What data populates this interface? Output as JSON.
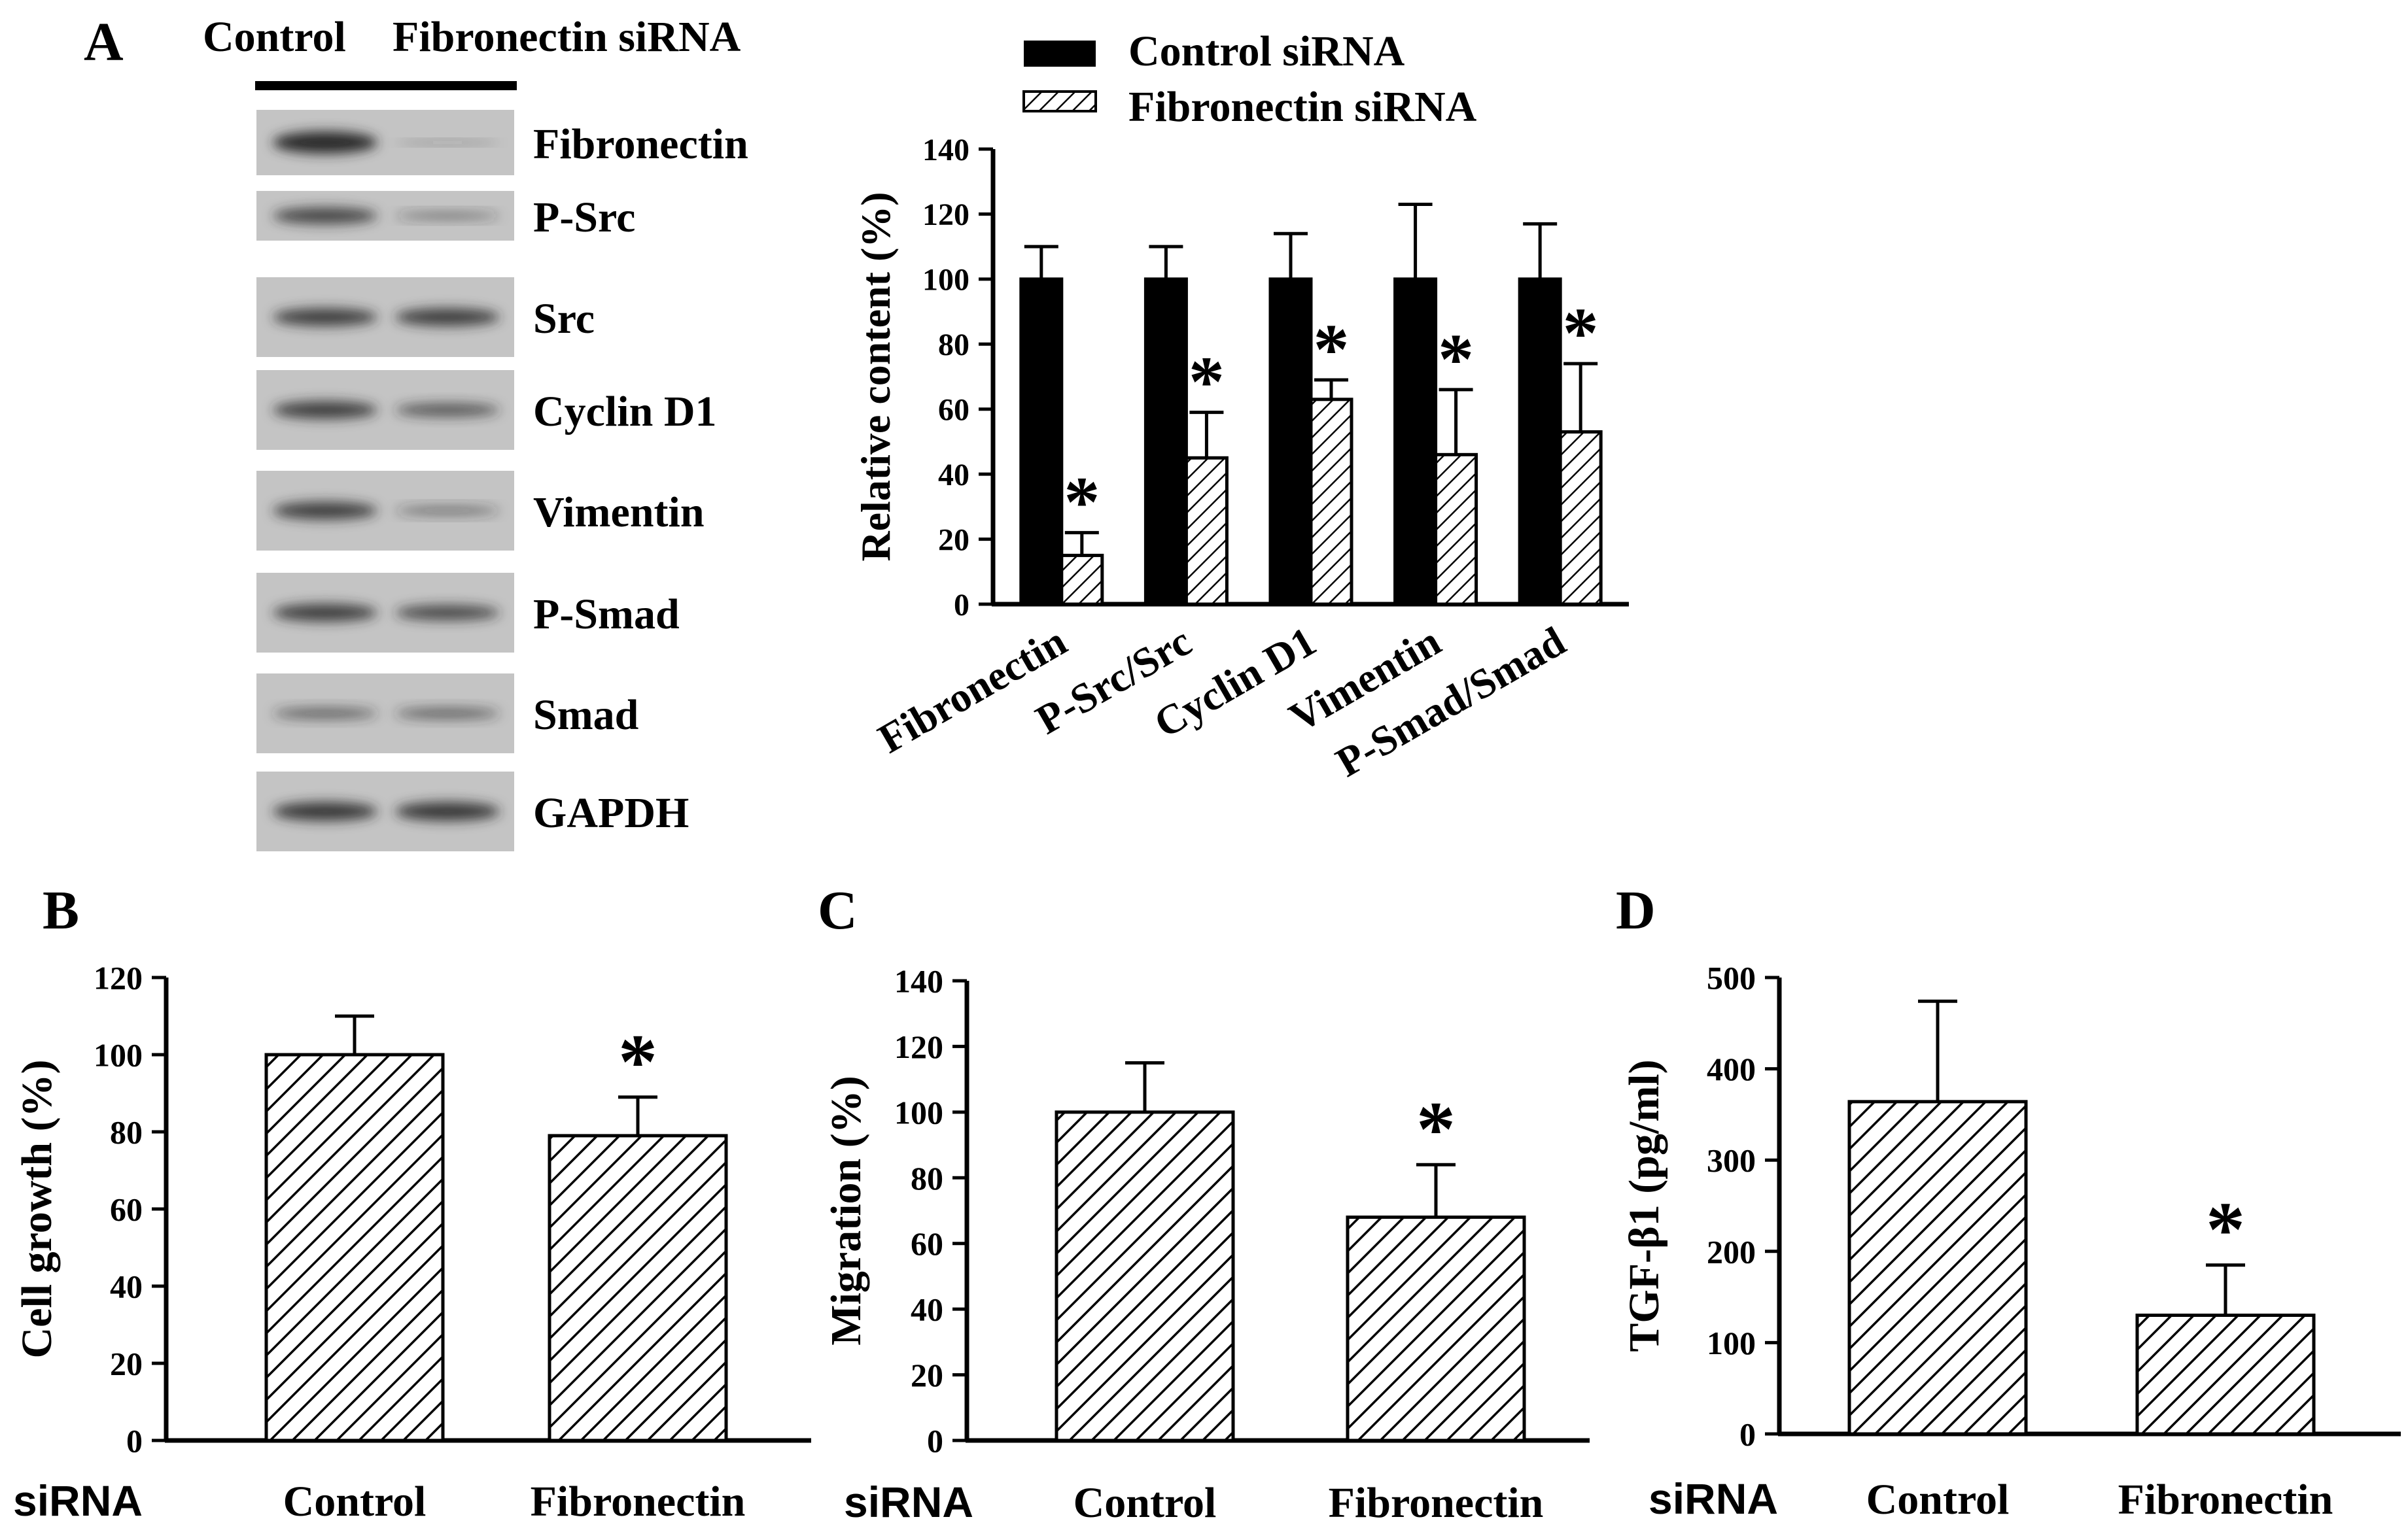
{
  "colors": {
    "ink": "#000000",
    "paper": "#ffffff",
    "blot_bg": "#c4c4c4",
    "band": "#2a2a2a"
  },
  "panel_labels": {
    "a": "A",
    "b": "B",
    "c": "C",
    "d": "D"
  },
  "blot": {
    "lane_headers": [
      "Control",
      "Fibronectin siRNA"
    ],
    "rows": [
      {
        "label": "Fibronectin",
        "control_intensity": 1.0,
        "sirna_intensity": 0.15
      },
      {
        "label": "P-Src",
        "control_intensity": 0.75,
        "sirna_intensity": 0.35
      },
      {
        "label": "Src",
        "control_intensity": 0.8,
        "sirna_intensity": 0.8
      },
      {
        "label": "Cyclin D1",
        "control_intensity": 0.8,
        "sirna_intensity": 0.6
      },
      {
        "label": "Vimentin",
        "control_intensity": 0.8,
        "sirna_intensity": 0.4
      },
      {
        "label": "P-Smad",
        "control_intensity": 0.8,
        "sirna_intensity": 0.7
      },
      {
        "label": "Smad",
        "control_intensity": 0.5,
        "sirna_intensity": 0.5
      },
      {
        "label": "GAPDH",
        "control_intensity": 0.85,
        "sirna_intensity": 0.85
      }
    ]
  },
  "chart_data": [
    {
      "id": "A",
      "type": "bar",
      "title": "",
      "xlabel": "",
      "ylabel": "Relative content (%)",
      "ylim": [
        0,
        140
      ],
      "yticks": [
        0,
        20,
        40,
        60,
        80,
        100,
        120,
        140
      ],
      "categories": [
        "Fibronectin",
        "P-Src/Src",
        "Cyclin D1",
        "Vimentin",
        "P-Smad/Smad"
      ],
      "legend": {
        "position": "top",
        "entries": [
          "Control siRNA",
          "Fibronectin siRNA"
        ]
      },
      "series": [
        {
          "name": "Control siRNA",
          "pattern": "solid",
          "values": [
            100,
            100,
            100,
            100,
            100
          ],
          "errors": [
            10,
            10,
            14,
            23,
            17
          ],
          "significant": [
            false,
            false,
            false,
            false,
            false
          ]
        },
        {
          "name": "Fibronectin siRNA",
          "pattern": "hatched",
          "values": [
            15,
            45,
            63,
            46,
            53
          ],
          "errors": [
            7,
            14,
            6,
            20,
            21
          ],
          "significant": [
            true,
            true,
            true,
            true,
            true
          ]
        }
      ],
      "significance_mark": "*"
    },
    {
      "id": "B",
      "type": "bar",
      "title": "",
      "xlabel": "siRNA",
      "ylabel": "Cell growth (%)",
      "ylim": [
        0,
        120
      ],
      "yticks": [
        0,
        20,
        40,
        60,
        80,
        100,
        120
      ],
      "categories": [
        "Control",
        "Fibronectin"
      ],
      "values": [
        100,
        79
      ],
      "errors": [
        10,
        10
      ],
      "significant": [
        false,
        true
      ],
      "significance_mark": "*"
    },
    {
      "id": "C",
      "type": "bar",
      "title": "",
      "xlabel": "siRNA",
      "ylabel": "Migration (%)",
      "ylim": [
        0,
        140
      ],
      "yticks": [
        0,
        20,
        40,
        60,
        80,
        100,
        120,
        140
      ],
      "categories": [
        "Control",
        "Fibronectin"
      ],
      "values": [
        100,
        68
      ],
      "errors": [
        15,
        16
      ],
      "significant": [
        false,
        true
      ],
      "significance_mark": "*"
    },
    {
      "id": "D",
      "type": "bar",
      "title": "",
      "xlabel": "siRNA",
      "ylabel": "TGF-β1 (pg/ml)",
      "ylim": [
        0,
        500
      ],
      "yticks": [
        0,
        100,
        200,
        300,
        400,
        500
      ],
      "categories": [
        "Control",
        "Fibronectin"
      ],
      "values": [
        364,
        130
      ],
      "errors": [
        110,
        55
      ],
      "significant": [
        false,
        true
      ],
      "significance_mark": "*"
    }
  ]
}
